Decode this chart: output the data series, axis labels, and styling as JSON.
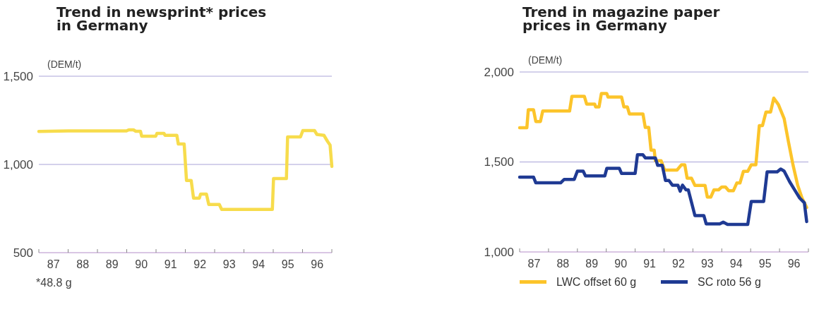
{
  "chart_data": [
    {
      "type": "line",
      "title": "Trend in newsprint* prices\nin Germany",
      "ylabel": "(DEM/t)",
      "annotations": [
        "*48.8 g"
      ],
      "ref_lines": [
        {
          "axis": "y",
          "value": 1000,
          "color": "#a9a3d8"
        }
      ],
      "legend": false,
      "xlim": [
        86.5,
        96.5
      ],
      "ylim": [
        500,
        1500
      ],
      "yticks": [
        {
          "value": 500,
          "label": "500"
        },
        {
          "value": 1000,
          "label": "1,000"
        },
        {
          "value": 1500,
          "label": "1,500"
        }
      ],
      "xticks": [
        {
          "value": 86.5,
          "label": null
        },
        87,
        {
          "value": 87.5,
          "label": null
        },
        88,
        {
          "value": 88.5,
          "label": null
        },
        89,
        {
          "value": 89.5,
          "label": null
        },
        90,
        {
          "value": 90.5,
          "label": null
        },
        91,
        {
          "value": 91.5,
          "label": null
        },
        92,
        {
          "value": 92.5,
          "label": null
        },
        93,
        {
          "value": 93.5,
          "label": null
        },
        94,
        {
          "value": 94.5,
          "label": null
        },
        95,
        {
          "value": 95.5,
          "label": null
        },
        96,
        {
          "value": 96.5,
          "label": null
        }
      ],
      "series": [
        {
          "color": "#f7dc4c",
          "x": [
            86.5,
            87.5,
            88.5,
            89.49,
            89.57,
            89.73,
            89.81,
            89.97,
            90.01,
            90.49,
            90.53,
            90.77,
            90.81,
            91.21,
            91.26,
            91.46,
            91.54,
            91.7,
            91.78,
            91.98,
            92.02,
            92.22,
            92.3,
            92.66,
            92.74,
            94.47,
            94.51,
            94.95,
            94.99,
            95.43,
            95.51,
            95.91,
            95.99,
            96.23,
            96.36,
            96.44,
            96.5
          ],
          "values": [
            1187,
            1190,
            1190,
            1190,
            1196,
            1196,
            1188,
            1188,
            1160,
            1160,
            1176,
            1176,
            1165,
            1165,
            1116,
            1116,
            909,
            909,
            809,
            809,
            832,
            832,
            773,
            773,
            745,
            745,
            920,
            920,
            1156,
            1156,
            1192,
            1192,
            1170,
            1165,
            1129,
            1110,
            989
          ]
        }
      ]
    },
    {
      "type": "line",
      "title": "Trend in magazine paper\nprices in Germany",
      "ylabel": "(DEM/t)",
      "ref_lines": [
        {
          "axis": "y",
          "value": 1500,
          "color": "#a9a3d8"
        }
      ],
      "legend": "bottom",
      "xlim": [
        86.5,
        96.5
      ],
      "ylim": [
        1000,
        2000
      ],
      "yticks": [
        {
          "value": 1000,
          "label": "1,000"
        },
        {
          "value": 1500,
          "label": "1,500"
        },
        {
          "value": 2000,
          "label": "2,000"
        }
      ],
      "xticks": [
        {
          "value": 86.5,
          "label": null
        },
        87,
        {
          "value": 87.5,
          "label": null
        },
        88,
        {
          "value": 88.5,
          "label": null
        },
        89,
        {
          "value": 89.5,
          "label": null
        },
        90,
        {
          "value": 90.5,
          "label": null
        },
        91,
        {
          "value": 91.5,
          "label": null
        },
        92,
        {
          "value": 92.5,
          "label": null
        },
        93,
        {
          "value": 93.5,
          "label": null
        },
        94,
        {
          "value": 94.5,
          "label": null
        },
        95,
        {
          "value": 95.5,
          "label": null
        },
        96,
        {
          "value": 96.5,
          "label": null
        }
      ],
      "series": [
        {
          "name": "LWC offset 60 g",
          "color": "#fcc42a",
          "x": [
            86.5,
            86.75,
            86.8,
            86.98,
            87.06,
            87.22,
            87.3,
            88.23,
            88.31,
            88.74,
            88.82,
            89.1,
            89.13,
            89.25,
            89.33,
            89.52,
            89.56,
            90.03,
            90.11,
            90.23,
            90.3,
            90.77,
            90.85,
            90.97,
            91.05,
            91.16,
            91.2,
            91.4,
            91.52,
            91.95,
            92.1,
            92.22,
            92.3,
            92.45,
            92.57,
            92.92,
            93,
            93.12,
            93.23,
            93.39,
            93.5,
            93.63,
            93.74,
            93.9,
            94.02,
            94.13,
            94.25,
            94.4,
            94.52,
            94.68,
            94.8,
            94.91,
            95.03,
            95.19,
            95.3,
            95.46,
            95.66,
            95.81,
            95.97,
            96.13,
            96.28,
            96.44
          ],
          "values": [
            1690,
            1690,
            1790,
            1790,
            1725,
            1725,
            1783,
            1783,
            1865,
            1865,
            1822,
            1822,
            1806,
            1806,
            1880,
            1880,
            1861,
            1861,
            1806,
            1806,
            1767,
            1767,
            1692,
            1692,
            1566,
            1566,
            1507,
            1507,
            1455,
            1455,
            1484,
            1484,
            1410,
            1410,
            1370,
            1370,
            1305,
            1305,
            1345,
            1345,
            1361,
            1361,
            1340,
            1340,
            1383,
            1383,
            1448,
            1448,
            1484,
            1484,
            1702,
            1702,
            1777,
            1777,
            1855,
            1819,
            1741,
            1611,
            1481,
            1370,
            1299,
            1247
          ]
        },
        {
          "name": "SC roto 56 g",
          "color": "#1f3a93",
          "x": [
            86.5,
            86.98,
            87.06,
            87.92,
            88.04,
            88.39,
            88.5,
            88.7,
            88.78,
            89.45,
            89.52,
            89.95,
            90.03,
            90.5,
            90.58,
            90.77,
            90.85,
            91.2,
            91.28,
            91.44,
            91.55,
            91.67,
            91.79,
            91.98,
            92.06,
            92.14,
            92.26,
            92.34,
            92.57,
            92.88,
            92.96,
            93.43,
            93.55,
            93.7,
            94.4,
            94.52,
            94.95,
            95.07,
            95.42,
            95.54,
            95.66,
            95.85,
            96.05,
            96.2,
            96.36,
            96.44
          ],
          "values": [
            1416,
            1416,
            1384,
            1384,
            1403,
            1403,
            1449,
            1449,
            1423,
            1423,
            1465,
            1465,
            1436,
            1436,
            1540,
            1540,
            1523,
            1523,
            1481,
            1481,
            1397,
            1397,
            1371,
            1371,
            1338,
            1371,
            1345,
            1345,
            1202,
            1202,
            1156,
            1156,
            1166,
            1153,
            1153,
            1280,
            1280,
            1445,
            1445,
            1461,
            1449,
            1390,
            1338,
            1299,
            1273,
            1169
          ]
        }
      ]
    }
  ]
}
